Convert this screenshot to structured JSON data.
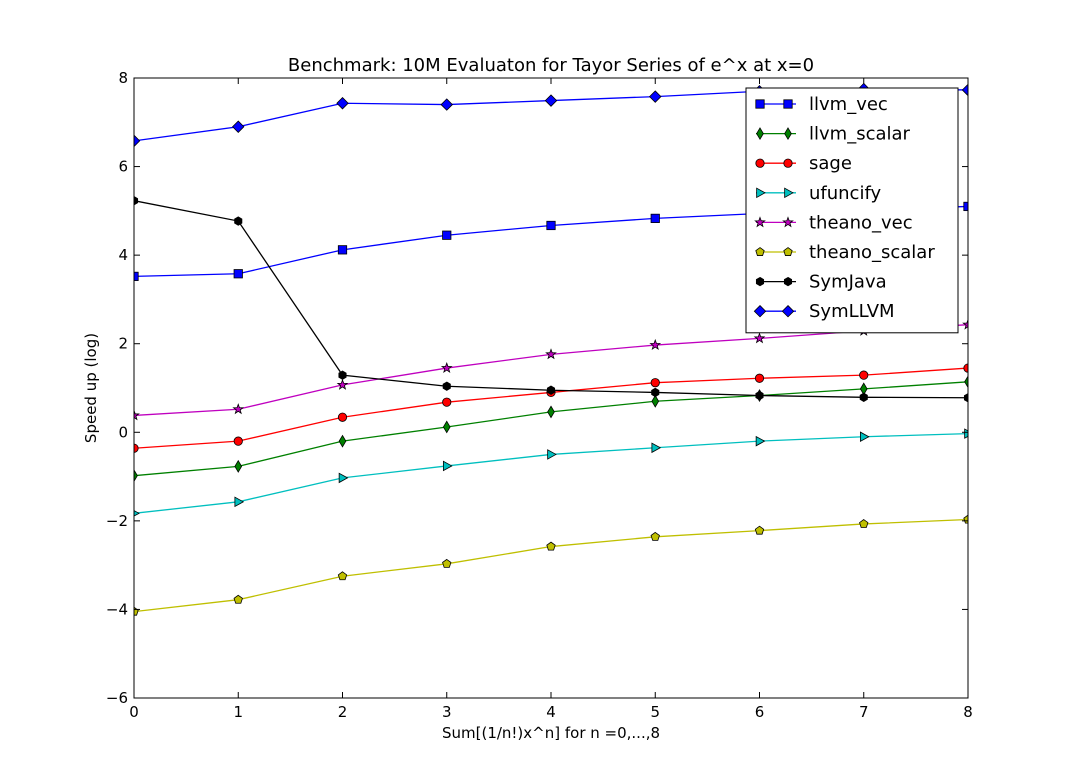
{
  "chart_data": {
    "type": "line",
    "title": "Benchmark: 10M Evaluaton for Tayor Series of e^x at x=0",
    "xlabel": "Sum[(1/n!)x^n] for n =0,...,8",
    "ylabel": "Speed up (log)",
    "xlim": [
      0,
      8
    ],
    "ylim": [
      -6,
      8
    ],
    "xticks": [
      0,
      1,
      2,
      3,
      4,
      5,
      6,
      7,
      8
    ],
    "yticks": [
      -6,
      -4,
      -2,
      0,
      2,
      4,
      6,
      8
    ],
    "ytick_labels": [
      "−6",
      "−4",
      "−2",
      "0",
      "2",
      "4",
      "6",
      "8"
    ],
    "grid": false,
    "legend_position": "upper-right",
    "x": [
      0,
      1,
      2,
      3,
      4,
      5,
      6,
      7,
      8
    ],
    "series": [
      {
        "name": "llvm_vec",
        "color": "#0000ff",
        "marker": "square",
        "values": [
          3.52,
          3.58,
          4.12,
          4.45,
          4.67,
          4.83,
          4.94,
          5.02,
          5.1
        ]
      },
      {
        "name": "llvm_scalar",
        "color": "#008000",
        "marker": "thin-diamond",
        "values": [
          -0.98,
          -0.77,
          -0.2,
          0.12,
          0.46,
          0.7,
          0.83,
          0.98,
          1.14
        ]
      },
      {
        "name": "sage",
        "color": "#ff0000",
        "marker": "circle",
        "values": [
          -0.36,
          -0.2,
          0.34,
          0.68,
          0.9,
          1.12,
          1.22,
          1.29,
          1.45
        ]
      },
      {
        "name": "ufuncify",
        "color": "#00bfbf",
        "marker": "triangle-right",
        "values": [
          -1.83,
          -1.57,
          -1.03,
          -0.76,
          -0.5,
          -0.35,
          -0.2,
          -0.1,
          -0.03
        ]
      },
      {
        "name": "theano_vec",
        "color": "#bf00bf",
        "marker": "star",
        "values": [
          0.38,
          0.52,
          1.07,
          1.45,
          1.76,
          1.97,
          2.12,
          2.29,
          2.43
        ]
      },
      {
        "name": "theano_scalar",
        "color": "#bfbf00",
        "marker": "pentagon",
        "values": [
          -4.05,
          -3.78,
          -3.25,
          -2.97,
          -2.58,
          -2.36,
          -2.22,
          -2.07,
          -1.97
        ]
      },
      {
        "name": "SymJava",
        "color": "#000000",
        "marker": "hexagon",
        "values": [
          5.23,
          4.77,
          1.29,
          1.04,
          0.95,
          0.9,
          0.83,
          0.79,
          0.78
        ]
      },
      {
        "name": "SymLLVM",
        "color": "#0000ff",
        "marker": "diamond",
        "values": [
          6.58,
          6.9,
          7.43,
          7.4,
          7.49,
          7.58,
          7.7,
          7.75,
          7.73
        ]
      }
    ]
  }
}
